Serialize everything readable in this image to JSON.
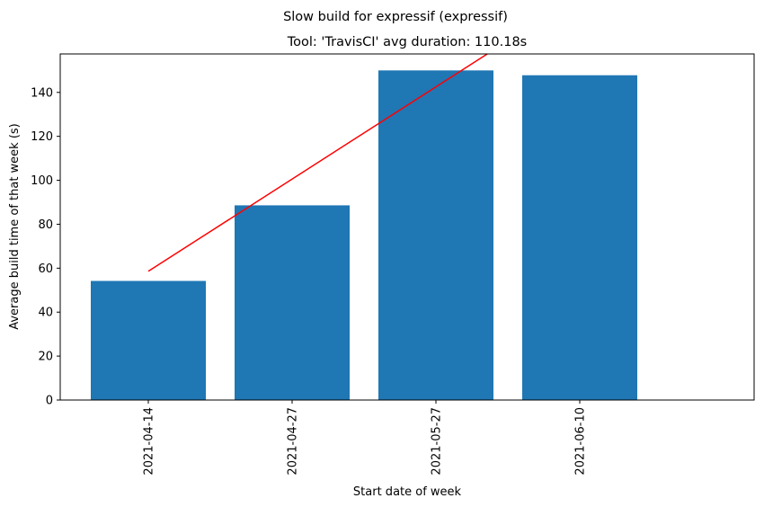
{
  "chart_data": {
    "type": "bar",
    "suptitle": "Slow build for expressif (expressif)",
    "title": "Tool: 'TravisCI' avg duration: 110.18s",
    "xlabel": "Start date of week",
    "ylabel": "Average build time of that week (s)",
    "categories": [
      "2021-04-14",
      "2021-04-27",
      "2021-05-27",
      "2021-06-10"
    ],
    "values": [
      54.2,
      88.6,
      150.0,
      147.8
    ],
    "ylim": [
      0,
      157.5
    ],
    "yticks": [
      0,
      20,
      40,
      60,
      80,
      100,
      120,
      140
    ],
    "grid": false,
    "bar_color": "#1f77b4",
    "trend_line": {
      "color": "#ff0000",
      "x": [
        "2021-04-14",
        "2021-06-01"
      ],
      "y": [
        58.6,
        157.5
      ]
    }
  }
}
